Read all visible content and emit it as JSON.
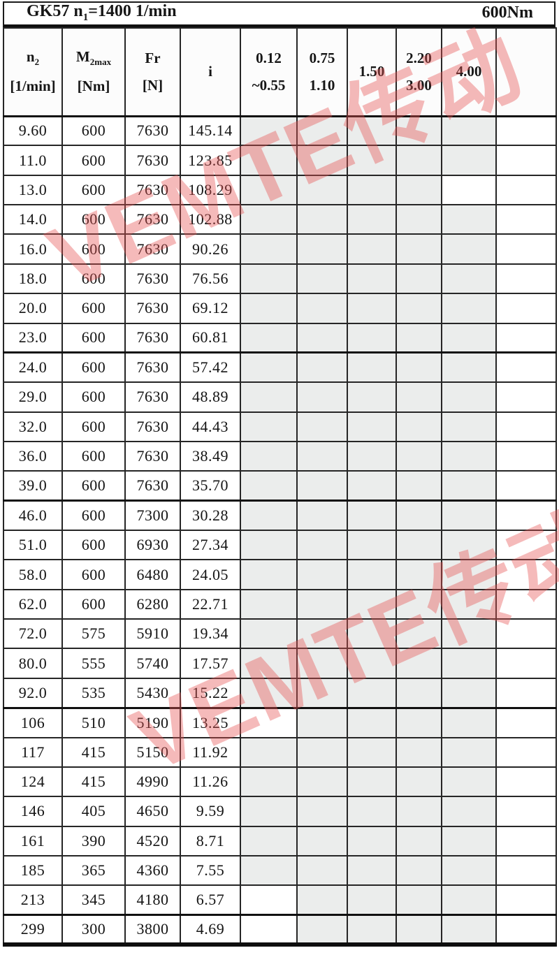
{
  "sheet": {
    "title": {
      "model_prefix": "GK57 n",
      "n_subscript": "1",
      "speed_suffix": "=1400 1/min",
      "torque": "600Nm"
    },
    "columns": {
      "n2": {
        "symbol": "n",
        "sub": "2",
        "unit": "[1/min]"
      },
      "m2max": {
        "symbol": "M",
        "sub": "2max",
        "unit": "[Nm]"
      },
      "fr": {
        "symbol": "Fr",
        "unit": "[N]"
      },
      "ratio": {
        "symbol": "i"
      },
      "power": [
        {
          "line1": "0.12",
          "line2": "~0.55"
        },
        {
          "line1": "0.75",
          "line2": "1.10"
        },
        {
          "line1": "1.50",
          "line2": ""
        },
        {
          "line1": "2.20",
          "line2": "3.00"
        },
        {
          "line1": "4.00",
          "line2": ""
        },
        {
          "line1": "",
          "line2": ""
        }
      ]
    },
    "rows": [
      {
        "n2": "9.60",
        "m2max": "600",
        "fr": "7630",
        "i": "145.14",
        "shade": [
          1,
          1,
          1,
          1,
          1,
          0
        ],
        "group_end": false
      },
      {
        "n2": "11.0",
        "m2max": "600",
        "fr": "7630",
        "i": "123.85",
        "shade": [
          1,
          1,
          1,
          1,
          1,
          0
        ],
        "group_end": false
      },
      {
        "n2": "13.0",
        "m2max": "600",
        "fr": "7630",
        "i": "108.29",
        "shade": [
          1,
          1,
          1,
          1,
          0,
          0
        ],
        "group_end": false
      },
      {
        "n2": "14.0",
        "m2max": "600",
        "fr": "7630",
        "i": "102.88",
        "shade": [
          1,
          1,
          1,
          1,
          1,
          0
        ],
        "group_end": false
      },
      {
        "n2": "16.0",
        "m2max": "600",
        "fr": "7630",
        "i": "90.26",
        "shade": [
          1,
          1,
          1,
          1,
          1,
          0
        ],
        "group_end": false
      },
      {
        "n2": "18.0",
        "m2max": "600",
        "fr": "7630",
        "i": "76.56",
        "shade": [
          1,
          1,
          1,
          1,
          1,
          0
        ],
        "group_end": false
      },
      {
        "n2": "20.0",
        "m2max": "600",
        "fr": "7630",
        "i": "69.12",
        "shade": [
          1,
          1,
          1,
          1,
          1,
          0
        ],
        "group_end": false
      },
      {
        "n2": "23.0",
        "m2max": "600",
        "fr": "7630",
        "i": "60.81",
        "shade": [
          1,
          1,
          1,
          1,
          1,
          0
        ],
        "group_end": true
      },
      {
        "n2": "24.0",
        "m2max": "600",
        "fr": "7630",
        "i": "57.42",
        "shade": [
          1,
          1,
          1,
          1,
          1,
          0
        ],
        "group_end": false
      },
      {
        "n2": "29.0",
        "m2max": "600",
        "fr": "7630",
        "i": "48.89",
        "shade": [
          1,
          1,
          1,
          1,
          1,
          0
        ],
        "group_end": false
      },
      {
        "n2": "32.0",
        "m2max": "600",
        "fr": "7630",
        "i": "44.43",
        "shade": [
          1,
          1,
          1,
          1,
          1,
          0
        ],
        "group_end": false
      },
      {
        "n2": "36.0",
        "m2max": "600",
        "fr": "7630",
        "i": "38.49",
        "shade": [
          1,
          1,
          1,
          1,
          1,
          0
        ],
        "group_end": false
      },
      {
        "n2": "39.0",
        "m2max": "600",
        "fr": "7630",
        "i": "35.70",
        "shade": [
          1,
          1,
          1,
          1,
          1,
          0
        ],
        "group_end": true
      },
      {
        "n2": "46.0",
        "m2max": "600",
        "fr": "7300",
        "i": "30.28",
        "shade": [
          1,
          1,
          1,
          1,
          1,
          0
        ],
        "group_end": false
      },
      {
        "n2": "51.0",
        "m2max": "600",
        "fr": "6930",
        "i": "27.34",
        "shade": [
          1,
          1,
          1,
          1,
          1,
          0
        ],
        "group_end": false
      },
      {
        "n2": "58.0",
        "m2max": "600",
        "fr": "6480",
        "i": "24.05",
        "shade": [
          1,
          1,
          1,
          1,
          1,
          0
        ],
        "group_end": false
      },
      {
        "n2": "62.0",
        "m2max": "600",
        "fr": "6280",
        "i": "22.71",
        "shade": [
          1,
          1,
          1,
          1,
          1,
          0
        ],
        "group_end": false
      },
      {
        "n2": "72.0",
        "m2max": "575",
        "fr": "5910",
        "i": "19.34",
        "shade": [
          1,
          1,
          1,
          1,
          1,
          0
        ],
        "group_end": false
      },
      {
        "n2": "80.0",
        "m2max": "555",
        "fr": "5740",
        "i": "17.57",
        "shade": [
          1,
          1,
          1,
          1,
          1,
          0
        ],
        "group_end": false
      },
      {
        "n2": "92.0",
        "m2max": "535",
        "fr": "5430",
        "i": "15.22",
        "shade": [
          1,
          1,
          1,
          1,
          1,
          0
        ],
        "group_end": true
      },
      {
        "n2": "106",
        "m2max": "510",
        "fr": "5190",
        "i": "13.25",
        "shade": [
          0,
          1,
          1,
          1,
          1,
          0
        ],
        "group_end": false
      },
      {
        "n2": "117",
        "m2max": "415",
        "fr": "5150",
        "i": "11.92",
        "shade": [
          1,
          1,
          1,
          1,
          1,
          0
        ],
        "group_end": false
      },
      {
        "n2": "124",
        "m2max": "415",
        "fr": "4990",
        "i": "11.26",
        "shade": [
          1,
          1,
          1,
          1,
          1,
          0
        ],
        "group_end": false
      },
      {
        "n2": "146",
        "m2max": "405",
        "fr": "4650",
        "i": "9.59",
        "shade": [
          1,
          1,
          1,
          1,
          1,
          0
        ],
        "group_end": false
      },
      {
        "n2": "161",
        "m2max": "390",
        "fr": "4520",
        "i": "8.71",
        "shade": [
          1,
          1,
          1,
          1,
          1,
          0
        ],
        "group_end": false
      },
      {
        "n2": "185",
        "m2max": "365",
        "fr": "4360",
        "i": "7.55",
        "shade": [
          1,
          1,
          1,
          1,
          1,
          0
        ],
        "group_end": false
      },
      {
        "n2": "213",
        "m2max": "345",
        "fr": "4180",
        "i": "6.57",
        "shade": [
          0,
          1,
          1,
          1,
          1,
          0
        ],
        "group_end": true
      },
      {
        "n2": "299",
        "m2max": "300",
        "fr": "3800",
        "i": "4.69",
        "shade": [
          0,
          1,
          1,
          1,
          1,
          0
        ],
        "group_end": false
      }
    ],
    "watermark_text": "VEMTE传动",
    "colors": {
      "shaded_cell": "#ebedec",
      "watermark_pink": "#e55252",
      "border_black": "#262626"
    }
  }
}
